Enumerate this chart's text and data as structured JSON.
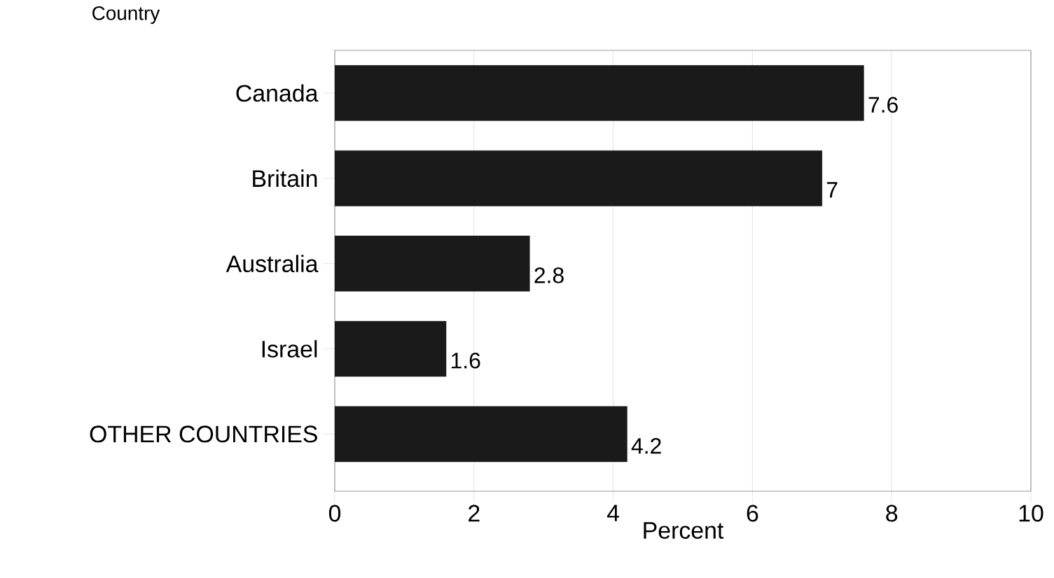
{
  "chart_data": {
    "type": "bar",
    "orientation": "horizontal",
    "xlabel": "Percent",
    "ylabel": "Country",
    "categories": [
      "Canada",
      "Britain",
      "Australia",
      "Israel",
      "OTHER COUNTRIES"
    ],
    "values": [
      7.6,
      7,
      2.8,
      1.6,
      4.2
    ],
    "color": "#1a1a1a",
    "xlim": [
      0,
      10
    ],
    "xticks": [
      0,
      2,
      4,
      6,
      8,
      10
    ],
    "grid": "x",
    "data_labels": true
  }
}
